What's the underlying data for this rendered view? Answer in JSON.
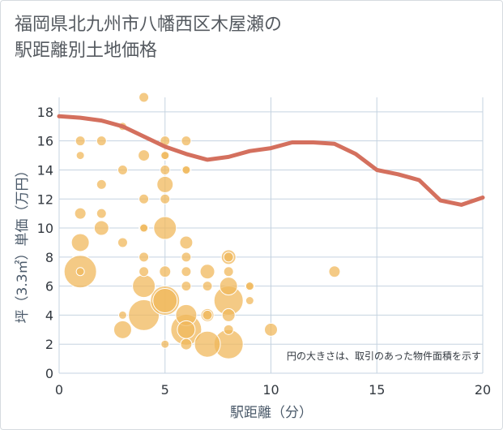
{
  "chart_data": {
    "type": "scatter",
    "title": "福岡県北九州市八幡西区木屋瀬の\n駅距離別土地価格",
    "xlabel": "駅距離（分）",
    "ylabel": "坪（3.3㎡）単価（万円）",
    "xlim": [
      0,
      20
    ],
    "ylim": [
      0,
      19
    ],
    "x_ticks": [
      "0",
      "5",
      "10",
      "15",
      "20"
    ],
    "y_ticks": [
      "0",
      "2",
      "4",
      "6",
      "8",
      "10",
      "12",
      "14",
      "16",
      "18"
    ],
    "grid": true,
    "annotation": "円の大きさは、取引のあった物件面積を示す",
    "colors": {
      "bubble": "#f0b85c",
      "trend": "#d4705e",
      "grid": "#c5d3e0"
    },
    "bubbles": [
      {
        "x": 1,
        "y": 16,
        "size": 6
      },
      {
        "x": 1,
        "y": 15,
        "size": 5
      },
      {
        "x": 1,
        "y": 11,
        "size": 7
      },
      {
        "x": 1,
        "y": 9,
        "size": 11
      },
      {
        "x": 1,
        "y": 7,
        "size": 20
      },
      {
        "x": 1,
        "y": 7,
        "size": 5
      },
      {
        "x": 2,
        "y": 16,
        "size": 6
      },
      {
        "x": 2,
        "y": 13,
        "size": 6
      },
      {
        "x": 2,
        "y": 11,
        "size": 6
      },
      {
        "x": 2,
        "y": 10,
        "size": 9
      },
      {
        "x": 3,
        "y": 17,
        "size": 5
      },
      {
        "x": 3,
        "y": 14,
        "size": 6
      },
      {
        "x": 3,
        "y": 9,
        "size": 6
      },
      {
        "x": 3,
        "y": 4,
        "size": 5
      },
      {
        "x": 3,
        "y": 3,
        "size": 11
      },
      {
        "x": 4,
        "y": 19,
        "size": 6
      },
      {
        "x": 4,
        "y": 15,
        "size": 7
      },
      {
        "x": 4,
        "y": 12,
        "size": 6
      },
      {
        "x": 4,
        "y": 10,
        "size": 6
      },
      {
        "x": 4,
        "y": 10,
        "size": 5
      },
      {
        "x": 4,
        "y": 8,
        "size": 6
      },
      {
        "x": 4,
        "y": 7,
        "size": 6
      },
      {
        "x": 4,
        "y": 6,
        "size": 14
      },
      {
        "x": 4,
        "y": 4,
        "size": 19
      },
      {
        "x": 5,
        "y": 16,
        "size": 6
      },
      {
        "x": 5,
        "y": 15,
        "size": 6
      },
      {
        "x": 5,
        "y": 15,
        "size": 5
      },
      {
        "x": 5,
        "y": 14,
        "size": 6
      },
      {
        "x": 5,
        "y": 13,
        "size": 10
      },
      {
        "x": 5,
        "y": 12,
        "size": 6
      },
      {
        "x": 5,
        "y": 10,
        "size": 14
      },
      {
        "x": 5,
        "y": 7,
        "size": 7
      },
      {
        "x": 5,
        "y": 5,
        "size": 18
      },
      {
        "x": 5,
        "y": 5,
        "size": 15
      },
      {
        "x": 5,
        "y": 2,
        "size": 5
      },
      {
        "x": 6,
        "y": 16,
        "size": 6
      },
      {
        "x": 6,
        "y": 14,
        "size": 6
      },
      {
        "x": 6,
        "y": 14,
        "size": 5
      },
      {
        "x": 6,
        "y": 9,
        "size": 8
      },
      {
        "x": 6,
        "y": 8,
        "size": 6
      },
      {
        "x": 6,
        "y": 7,
        "size": 6
      },
      {
        "x": 6,
        "y": 6,
        "size": 6
      },
      {
        "x": 6,
        "y": 4,
        "size": 13
      },
      {
        "x": 6,
        "y": 3,
        "size": 19
      },
      {
        "x": 6,
        "y": 3,
        "size": 11
      },
      {
        "x": 6,
        "y": 2,
        "size": 7
      },
      {
        "x": 7,
        "y": 7,
        "size": 9
      },
      {
        "x": 7,
        "y": 6,
        "size": 6
      },
      {
        "x": 7,
        "y": 4,
        "size": 8
      },
      {
        "x": 7,
        "y": 4,
        "size": 6
      },
      {
        "x": 7,
        "y": 2,
        "size": 16
      },
      {
        "x": 8,
        "y": 8,
        "size": 9
      },
      {
        "x": 8,
        "y": 8,
        "size": 6
      },
      {
        "x": 8,
        "y": 7,
        "size": 6
      },
      {
        "x": 8,
        "y": 6,
        "size": 11
      },
      {
        "x": 8,
        "y": 5,
        "size": 18
      },
      {
        "x": 8,
        "y": 4,
        "size": 8
      },
      {
        "x": 8,
        "y": 3,
        "size": 6
      },
      {
        "x": 8,
        "y": 2,
        "size": 18
      },
      {
        "x": 9,
        "y": 6,
        "size": 6
      },
      {
        "x": 9,
        "y": 6,
        "size": 5
      },
      {
        "x": 9,
        "y": 5,
        "size": 5
      },
      {
        "x": 10,
        "y": 3,
        "size": 8
      },
      {
        "x": 13,
        "y": 7,
        "size": 7
      }
    ],
    "trend": {
      "x": [
        0,
        1,
        2,
        3,
        4,
        5,
        6,
        7,
        8,
        9,
        10,
        11,
        12,
        13,
        14,
        15,
        16,
        17,
        18,
        19,
        20
      ],
      "y": [
        17.7,
        17.6,
        17.4,
        17.0,
        16.3,
        15.6,
        15.1,
        14.7,
        14.9,
        15.3,
        15.5,
        15.9,
        15.9,
        15.8,
        15.1,
        14.0,
        13.7,
        13.3,
        11.9,
        11.6,
        12.1
      ]
    }
  }
}
